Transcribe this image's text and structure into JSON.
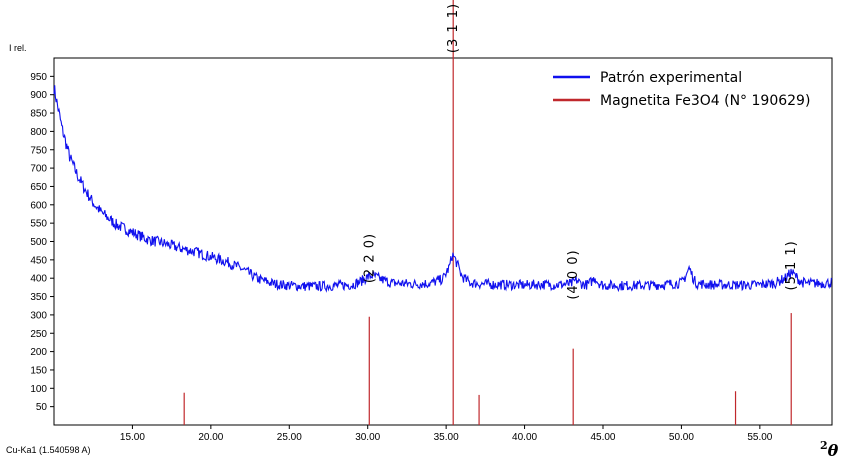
{
  "chart_data": {
    "type": "line",
    "ylabel": "I rel.",
    "xlabel_left": "Cu-Ka1 (1.540598 A)",
    "xlabel_right_sup": "2",
    "xlabel_right": "θ",
    "xlim": [
      10.0,
      59.6
    ],
    "ylim": [
      0,
      1000
    ],
    "x_ticks": [
      "15.00",
      "20.00",
      "25.00",
      "30.00",
      "35.00",
      "40.00",
      "45.00",
      "50.00",
      "55.00"
    ],
    "x_tick_values": [
      15,
      20,
      25,
      30,
      35,
      40,
      45,
      50,
      55
    ],
    "y_ticks": [
      "50",
      "100",
      "150",
      "200",
      "250",
      "300",
      "350",
      "400",
      "450",
      "500",
      "550",
      "600",
      "650",
      "700",
      "750",
      "800",
      "850",
      "900",
      "950"
    ],
    "y_tick_values": [
      50,
      100,
      150,
      200,
      250,
      300,
      350,
      400,
      450,
      500,
      550,
      600,
      650,
      700,
      750,
      800,
      850,
      900,
      950
    ],
    "legend_position": "top-right",
    "series": [
      {
        "name": "Patrón experimental",
        "color": "#1010ee",
        "x": [
          10.0,
          10.5,
          11,
          11.5,
          12,
          12.5,
          13,
          14,
          15,
          16,
          17,
          18,
          19,
          20,
          21,
          22,
          23,
          24,
          25,
          26,
          27,
          28,
          29,
          29.5,
          30,
          30.3,
          30.8,
          31.5,
          32,
          33,
          34,
          34.8,
          35.2,
          35.4,
          35.6,
          36,
          36.5,
          37,
          38,
          39,
          40,
          41,
          42,
          43,
          43.3,
          43.6,
          44,
          44.3,
          44.5,
          44.7,
          45,
          46,
          47,
          48,
          49,
          50,
          50.2,
          50.5,
          50.8,
          51,
          52,
          53,
          54,
          55,
          56,
          56.7,
          57.0,
          57.3,
          57.6,
          58,
          59,
          59.6
        ],
        "y": [
          920,
          810,
          730,
          680,
          640,
          605,
          580,
          545,
          525,
          505,
          495,
          482,
          472,
          458,
          445,
          425,
          398,
          385,
          380,
          378,
          378,
          380,
          382,
          390,
          403,
          408,
          398,
          387,
          386,
          384,
          386,
          398,
          430,
          465,
          450,
          405,
          388,
          385,
          383,
          382,
          381,
          383,
          382,
          385,
          395,
          385,
          382,
          392,
          402,
          388,
          381,
          380,
          380,
          381,
          383,
          387,
          400,
          428,
          395,
          385,
          382,
          382,
          381,
          382,
          387,
          402,
          417,
          405,
          390,
          386,
          386,
          388
        ]
      },
      {
        "name": "Magnetita Fe3O4 (N° 190629)",
        "color": "#c0282c",
        "type": "stick",
        "x": [
          18.3,
          30.1,
          35.45,
          37.1,
          43.1,
          53.45,
          57.0
        ],
        "y": [
          88,
          295,
          1000,
          82,
          208,
          92,
          305
        ]
      }
    ],
    "annotations": [
      {
        "text": "(2 2 0)",
        "x": 30.1,
        "y": 455
      },
      {
        "text": "(3 1 1)",
        "x": 35.45,
        "y": 1040
      },
      {
        "text": "(4 0 0)",
        "x": 43.1,
        "y": 410
      },
      {
        "text": "(5 1 1)",
        "x": 57.0,
        "y": 435
      }
    ]
  }
}
